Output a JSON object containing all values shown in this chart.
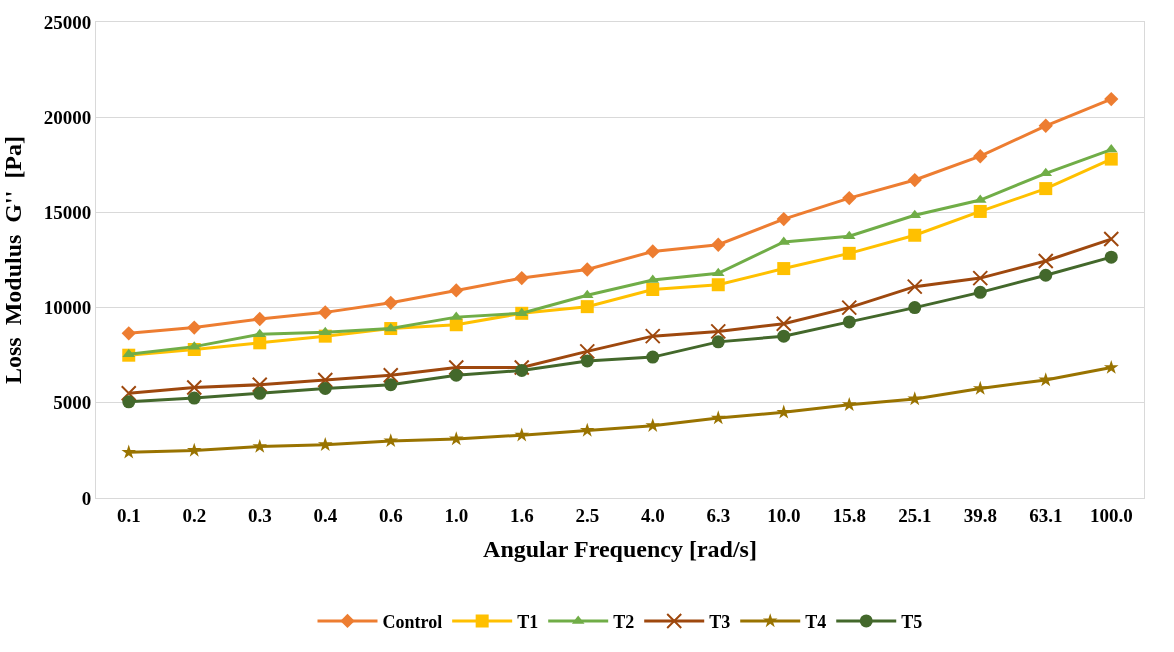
{
  "chart_data": {
    "type": "line",
    "xlabel": "Angular Frequency [rad/s]",
    "ylabel": "Loss  Modulus  G''  [Pa]",
    "categories": [
      "0.1",
      "0.2",
      "0.3",
      "0.4",
      "0.6",
      "1.0",
      "1.6",
      "2.5",
      "4.0",
      "6.3",
      "10.0",
      "15.8",
      "25.1",
      "39.8",
      "63.1",
      "100.0"
    ],
    "ylim": [
      0,
      25000
    ],
    "yticks": [
      0,
      5000,
      10000,
      15000,
      20000,
      25000
    ],
    "grid": "y",
    "legend": "bottom",
    "series": [
      {
        "name": "Control",
        "color": "#ed7d31",
        "marker": "diamond",
        "values": [
          8650,
          8950,
          9400,
          9750,
          10250,
          10900,
          11550,
          12000,
          12950,
          13300,
          14650,
          15750,
          16700,
          17950,
          19550,
          20950
        ]
      },
      {
        "name": "T1",
        "color": "#ffc000",
        "marker": "square",
        "values": [
          7500,
          7800,
          8150,
          8500,
          8900,
          9100,
          9700,
          10050,
          10950,
          11200,
          12050,
          12850,
          13800,
          15050,
          16250,
          17800
        ]
      },
      {
        "name": "T2",
        "color": "#70ad47",
        "marker": "triangle",
        "values": [
          7550,
          7950,
          8600,
          8700,
          8900,
          9500,
          9700,
          10650,
          11450,
          11800,
          13450,
          13750,
          14850,
          15650,
          17050,
          18300
        ]
      },
      {
        "name": "T3",
        "color": "#9e480e",
        "marker": "cross",
        "values": [
          5500,
          5800,
          5950,
          6200,
          6450,
          6850,
          6850,
          7700,
          8500,
          8750,
          9150,
          10000,
          11100,
          11550,
          12450,
          13600
        ]
      },
      {
        "name": "T4",
        "color": "#997300",
        "marker": "star",
        "values": [
          2400,
          2500,
          2700,
          2800,
          3000,
          3100,
          3300,
          3550,
          3800,
          4200,
          4500,
          4900,
          5200,
          5750,
          6200,
          6850
        ]
      },
      {
        "name": "T5",
        "color": "#43682b",
        "marker": "circle",
        "values": [
          5050,
          5250,
          5500,
          5750,
          5950,
          6450,
          6700,
          7200,
          7400,
          8200,
          8500,
          9250,
          10000,
          10800,
          11700,
          12650
        ]
      }
    ]
  }
}
